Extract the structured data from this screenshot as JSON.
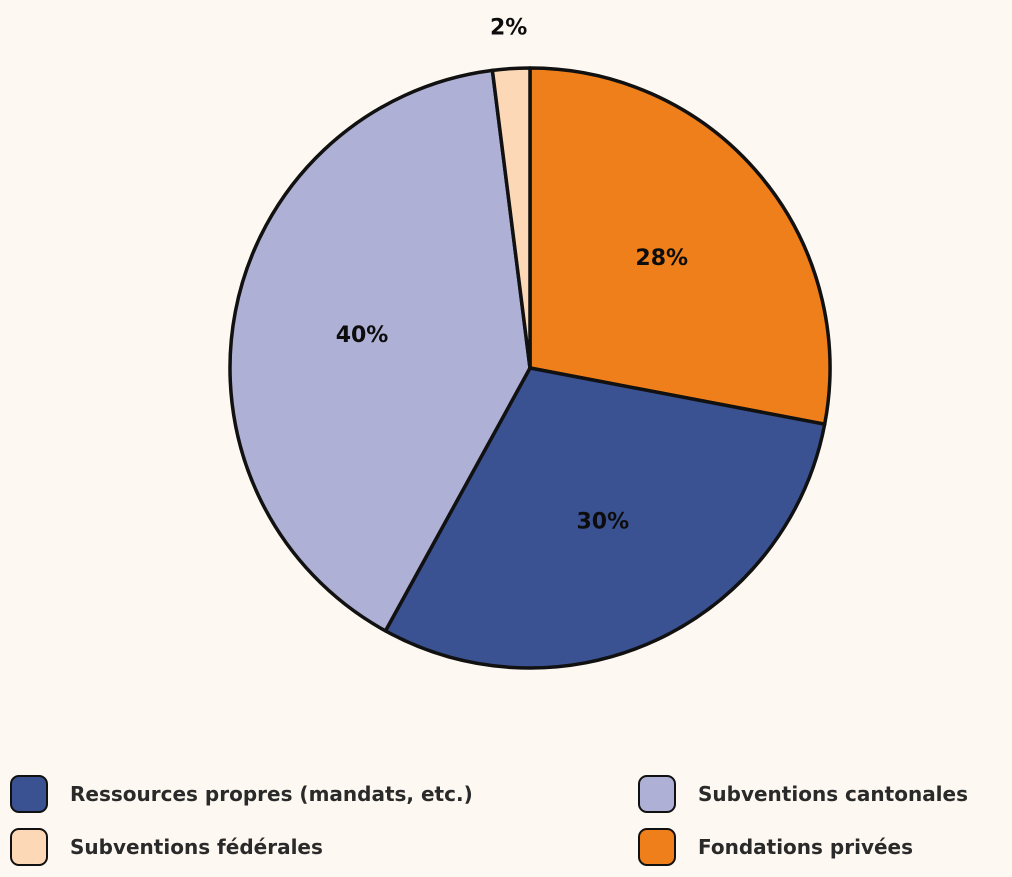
{
  "chart_data": {
    "type": "pie",
    "title": "",
    "slices": [
      {
        "label": "Fondations privées",
        "value": 28,
        "display": "28%",
        "color": "#ee7f1a"
      },
      {
        "label": "Ressources propres (mandats, etc.)",
        "value": 30,
        "display": "30%",
        "color": "#3a5192"
      },
      {
        "label": "Subventions cantonales",
        "value": 40,
        "display": "40%",
        "color": "#aeb0d5"
      },
      {
        "label": "Subventions fédérales",
        "value": 2,
        "display": "2%",
        "color": "#fdd8b6"
      }
    ],
    "start_angle": "top (12 o'clock)",
    "direction": "clockwise",
    "legend": {
      "position": "bottom",
      "columns": 2,
      "items": [
        {
          "label": "Ressources propres (mandats, etc.)",
          "color": "#3a5192"
        },
        {
          "label": "Subventions cantonales",
          "color": "#aeb0d5"
        },
        {
          "label": "Subventions fédérales",
          "color": "#fdd8b6"
        },
        {
          "label": "Fondations privées",
          "color": "#ee7f1a"
        }
      ]
    }
  },
  "colors": {
    "background": "#fdf8f1",
    "outline": "#111111"
  }
}
